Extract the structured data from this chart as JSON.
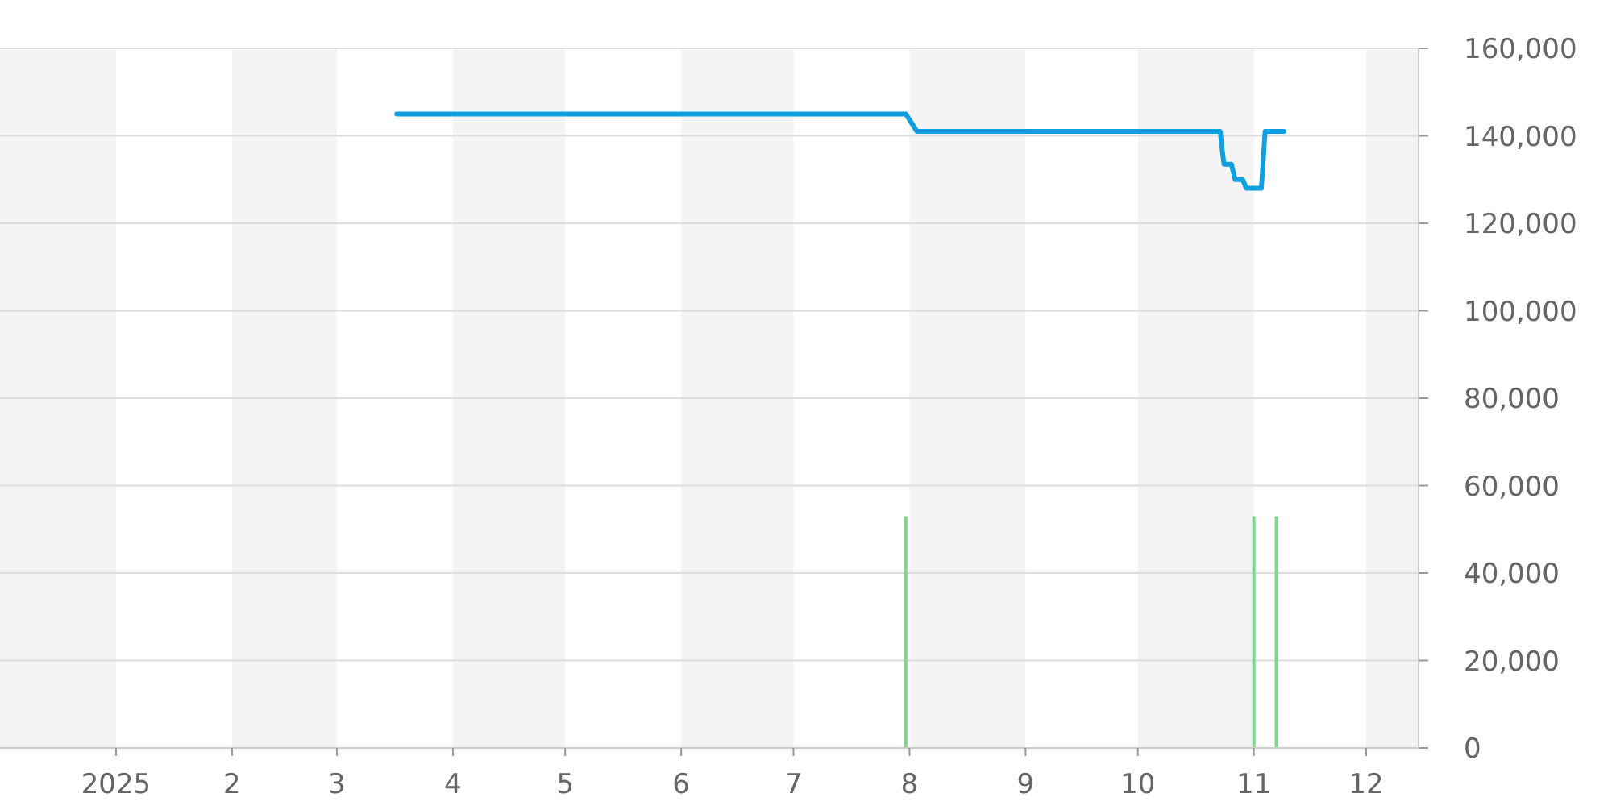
{
  "chart_data": {
    "type": "line",
    "xlim": [
      "2024-12-01",
      "2025-12-15"
    ],
    "xticks": [
      {
        "value": "2025-01-01",
        "label": "2025"
      },
      {
        "value": "2025-02-01",
        "label": "2"
      },
      {
        "value": "2025-03-01",
        "label": "3"
      },
      {
        "value": "2025-04-01",
        "label": "4"
      },
      {
        "value": "2025-05-01",
        "label": "5"
      },
      {
        "value": "2025-06-01",
        "label": "6"
      },
      {
        "value": "2025-07-01",
        "label": "7"
      },
      {
        "value": "2025-08-01",
        "label": "8"
      },
      {
        "value": "2025-09-01",
        "label": "9"
      },
      {
        "value": "2025-10-01",
        "label": "10"
      },
      {
        "value": "2025-11-01",
        "label": "11"
      },
      {
        "value": "2025-12-01",
        "label": "12"
      }
    ],
    "ylim": [
      0,
      160000
    ],
    "yticks": [
      {
        "value": 0,
        "label": "0"
      },
      {
        "value": 20000,
        "label": "20,000"
      },
      {
        "value": 40000,
        "label": "40,000"
      },
      {
        "value": 60000,
        "label": "60,000"
      },
      {
        "value": 80000,
        "label": "80,000"
      },
      {
        "value": 100000,
        "label": "100,000"
      },
      {
        "value": 120000,
        "label": "120,000"
      },
      {
        "value": 140000,
        "label": "140,000"
      },
      {
        "value": 160000,
        "label": "160,000"
      }
    ],
    "grid": "y",
    "marker": "none",
    "line_style": "solid",
    "bands": [
      {
        "axis": "x",
        "from": "2024-12-01",
        "to": "2025-01-01",
        "color": "#f4f4f4"
      },
      {
        "axis": "x",
        "from": "2025-02-01",
        "to": "2025-03-01",
        "color": "#f4f4f4"
      },
      {
        "axis": "x",
        "from": "2025-04-01",
        "to": "2025-05-01",
        "color": "#f4f4f4"
      },
      {
        "axis": "x",
        "from": "2025-06-01",
        "to": "2025-07-01",
        "color": "#f4f4f4"
      },
      {
        "axis": "x",
        "from": "2025-08-01",
        "to": "2025-09-01",
        "color": "#f4f4f4"
      },
      {
        "axis": "x",
        "from": "2025-10-01",
        "to": "2025-11-01",
        "color": "#f4f4f4"
      },
      {
        "axis": "x",
        "from": "2025-12-01",
        "to": "2025-12-15",
        "color": "#f4f4f4"
      }
    ],
    "series": [
      {
        "type": "bar",
        "color": "#7dd88e",
        "x": [
          "2025-07-31",
          "2025-11-01",
          "2025-11-07"
        ],
        "values": [
          53000,
          53000,
          53000
        ]
      },
      {
        "color": "#0fa0e2",
        "x": [
          "2025-03-17",
          "2025-07-31",
          "2025-08-03",
          "2025-10-23",
          "2025-10-24",
          "2025-10-26",
          "2025-10-27",
          "2025-10-29",
          "2025-10-30",
          "2025-11-03",
          "2025-11-04",
          "2025-11-09"
        ],
        "values": [
          145000,
          145000,
          141000,
          141000,
          133500,
          133500,
          130000,
          130000,
          128000,
          128000,
          141000,
          141000
        ]
      }
    ]
  }
}
